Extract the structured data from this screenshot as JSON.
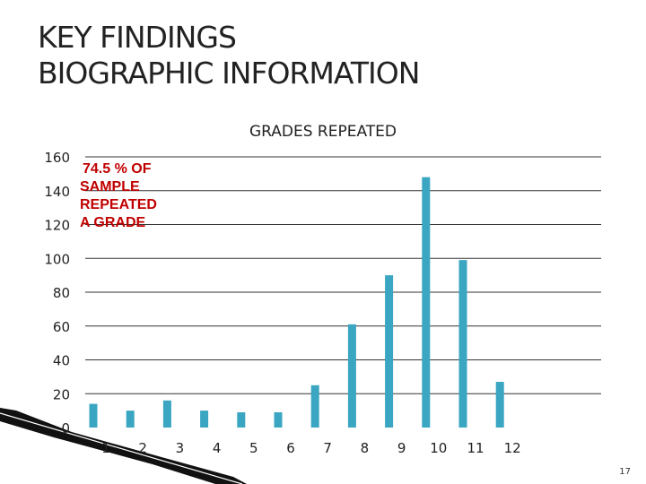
{
  "slide": {
    "title_line1": "KEY FINDINGS",
    "title_line2": "BIOGRAPHIC INFORMATION",
    "page_number": "17"
  },
  "colors": {
    "bar": "#3aa6c2",
    "annotation": "#c00000",
    "gridline": "#333333",
    "text": "#222222"
  },
  "chart_data": {
    "type": "bar",
    "title": "GRADES REPEATED",
    "categories": [
      "1",
      "2",
      "3",
      "4",
      "5",
      "6",
      "7",
      "8",
      "9",
      "10",
      "11",
      "12"
    ],
    "values": [
      14,
      10,
      16,
      10,
      9,
      9,
      25,
      61,
      90,
      148,
      99,
      27
    ],
    "ylim": [
      0,
      160
    ],
    "yticks": [
      0,
      20,
      40,
      60,
      80,
      100,
      120,
      140,
      160
    ],
    "grid": true,
    "legend": "none",
    "annotation": {
      "lines": [
        "74.5 % OF",
        "SAMPLE",
        "REPEATED",
        "A GRADE"
      ]
    }
  }
}
